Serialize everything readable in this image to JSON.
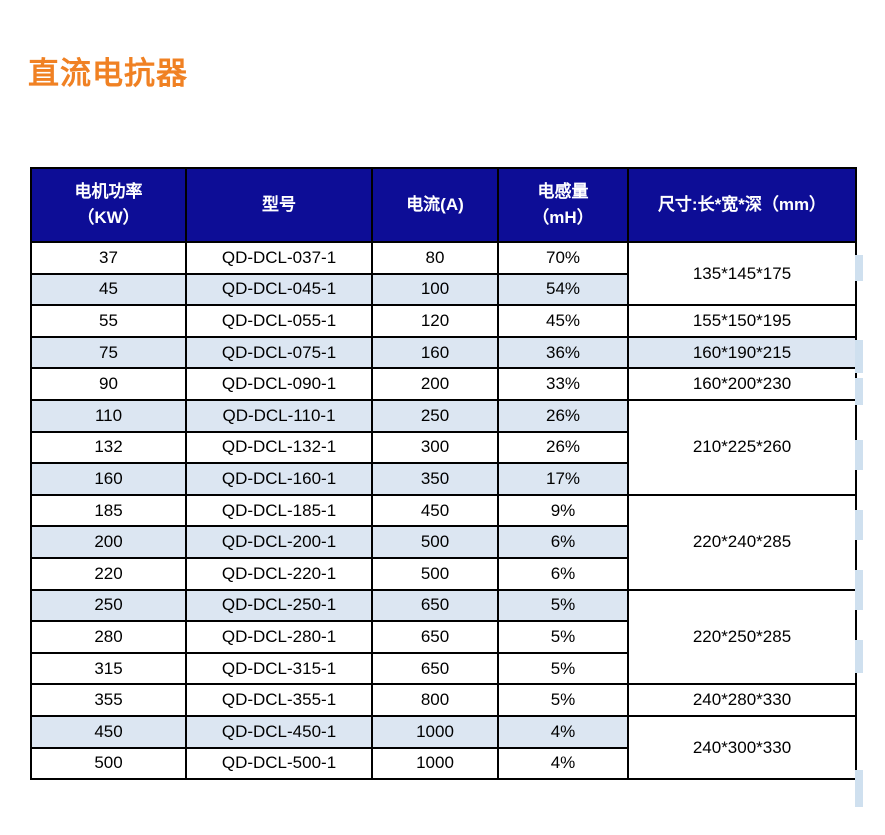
{
  "title": "直流电抗器",
  "colors": {
    "title": "#f08123",
    "header_bg": "#0d0d96",
    "header_text": "#ffffff",
    "stripe_bg": "#dce6f2",
    "border": "#000000",
    "shadow": "#cfe0ef"
  },
  "table": {
    "headers": [
      {
        "id": "power",
        "lines": [
          "电机功率",
          "（KW）"
        ]
      },
      {
        "id": "model",
        "lines": [
          "型号"
        ]
      },
      {
        "id": "current",
        "lines": [
          "电流(A)"
        ]
      },
      {
        "id": "inductance",
        "lines": [
          "电感量",
          "（mH）"
        ]
      },
      {
        "id": "dimensions",
        "lines": [
          "尺寸:长*宽*深（mm）"
        ]
      }
    ],
    "rows": [
      {
        "power": "37",
        "model": "QD-DCL-037-1",
        "current": "80",
        "inductance": "70%",
        "striped": false,
        "dim": {
          "text": "135*145*175",
          "rowspan": 2,
          "bg": "white"
        }
      },
      {
        "power": "45",
        "model": "QD-DCL-045-1",
        "current": "100",
        "inductance": "54%",
        "striped": true
      },
      {
        "power": "55",
        "model": "QD-DCL-055-1",
        "current": "120",
        "inductance": "45%",
        "striped": false,
        "dim": {
          "text": "155*150*195",
          "rowspan": 1,
          "bg": "white"
        }
      },
      {
        "power": "75",
        "model": "QD-DCL-075-1",
        "current": "160",
        "inductance": "36%",
        "striped": true,
        "dim": {
          "text": "160*190*215",
          "rowspan": 1,
          "bg": "stripe"
        }
      },
      {
        "power": "90",
        "model": "QD-DCL-090-1",
        "current": "200",
        "inductance": "33%",
        "striped": false,
        "dim": {
          "text": "160*200*230",
          "rowspan": 1,
          "bg": "white"
        }
      },
      {
        "power": "110",
        "model": "QD-DCL-110-1",
        "current": "250",
        "inductance": "26%",
        "striped": true,
        "dim": {
          "text": "210*225*260",
          "rowspan": 3,
          "bg": "white"
        }
      },
      {
        "power": "132",
        "model": "QD-DCL-132-1",
        "current": "300",
        "inductance": "26%",
        "striped": false
      },
      {
        "power": "160",
        "model": "QD-DCL-160-1",
        "current": "350",
        "inductance": "17%",
        "striped": true
      },
      {
        "power": "185",
        "model": "QD-DCL-185-1",
        "current": "450",
        "inductance": "9%",
        "striped": false,
        "dim": {
          "text": "220*240*285",
          "rowspan": 3,
          "bg": "white"
        }
      },
      {
        "power": "200",
        "model": "QD-DCL-200-1",
        "current": "500",
        "inductance": "6%",
        "striped": true
      },
      {
        "power": "220",
        "model": "QD-DCL-220-1",
        "current": "500",
        "inductance": "6%",
        "striped": false
      },
      {
        "power": "250",
        "model": "QD-DCL-250-1",
        "current": "650",
        "inductance": "5%",
        "striped": true,
        "dim": {
          "text": "220*250*285",
          "rowspan": 3,
          "bg": "white"
        }
      },
      {
        "power": "280",
        "model": "QD-DCL-280-1",
        "current": "650",
        "inductance": "5%",
        "striped": false
      },
      {
        "power": "315",
        "model": "QD-DCL-315-1",
        "current": "650",
        "inductance": "5%",
        "striped": false
      },
      {
        "power": "355",
        "model": "QD-DCL-355-1",
        "current": "800",
        "inductance": "5%",
        "striped": false,
        "dim": {
          "text": "240*280*330",
          "rowspan": 1,
          "bg": "white"
        }
      },
      {
        "power": "450",
        "model": "QD-DCL-450-1",
        "current": "1000",
        "inductance": "4%",
        "striped": true,
        "dim": {
          "text": "240*300*330",
          "rowspan": 2,
          "bg": "white"
        }
      },
      {
        "power": "500",
        "model": "QD-DCL-500-1",
        "current": "1000",
        "inductance": "4%",
        "striped": false
      }
    ]
  }
}
